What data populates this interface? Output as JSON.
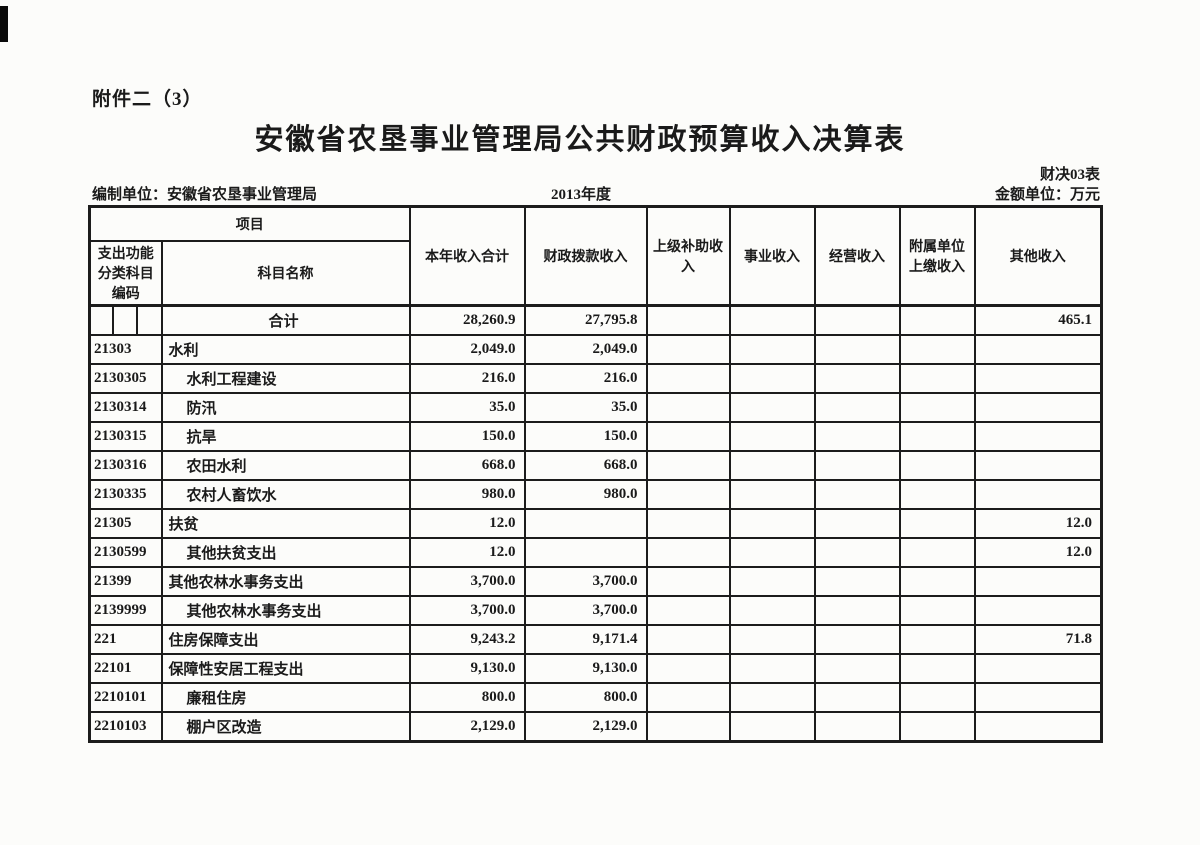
{
  "page": {
    "attachment_label": "附件二（3）",
    "title": "安徽省农垦事业管理局公共财政预算收入决算表",
    "form_code": "财决03表",
    "prepared_by": "编制单位：安徽省农垦事业管理局",
    "year": "2013年度",
    "unit_label": "金额单位：万元"
  },
  "table": {
    "header": {
      "project": "项目",
      "code": "支出功能分类科目编码",
      "subject_name": "科目名称",
      "columns": [
        "本年收入合计",
        "财政拨款收入",
        "上级补助收入",
        "事业收入",
        "经营收入",
        "附属单位上缴收入",
        "其他收入"
      ]
    },
    "rows": [
      {
        "code": "",
        "name": "合计",
        "total_row": true,
        "indent": false,
        "values": [
          "28,260.9",
          "27,795.8",
          "",
          "",
          "",
          "",
          "465.1"
        ]
      },
      {
        "code": "21303",
        "name": "水利",
        "total_row": false,
        "indent": false,
        "values": [
          "2,049.0",
          "2,049.0",
          "",
          "",
          "",
          "",
          ""
        ]
      },
      {
        "code": "2130305",
        "name": "水利工程建设",
        "total_row": false,
        "indent": true,
        "values": [
          "216.0",
          "216.0",
          "",
          "",
          "",
          "",
          ""
        ]
      },
      {
        "code": "2130314",
        "name": "防汛",
        "total_row": false,
        "indent": true,
        "values": [
          "35.0",
          "35.0",
          "",
          "",
          "",
          "",
          ""
        ]
      },
      {
        "code": "2130315",
        "name": "抗旱",
        "total_row": false,
        "indent": true,
        "values": [
          "150.0",
          "150.0",
          "",
          "",
          "",
          "",
          ""
        ]
      },
      {
        "code": "2130316",
        "name": "农田水利",
        "total_row": false,
        "indent": true,
        "values": [
          "668.0",
          "668.0",
          "",
          "",
          "",
          "",
          ""
        ]
      },
      {
        "code": "2130335",
        "name": "农村人畜饮水",
        "total_row": false,
        "indent": true,
        "values": [
          "980.0",
          "980.0",
          "",
          "",
          "",
          "",
          ""
        ]
      },
      {
        "code": "21305",
        "name": "扶贫",
        "total_row": false,
        "indent": false,
        "values": [
          "12.0",
          "",
          "",
          "",
          "",
          "",
          "12.0"
        ]
      },
      {
        "code": "2130599",
        "name": "其他扶贫支出",
        "total_row": false,
        "indent": true,
        "values": [
          "12.0",
          "",
          "",
          "",
          "",
          "",
          "12.0"
        ]
      },
      {
        "code": "21399",
        "name": "其他农林水事务支出",
        "total_row": false,
        "indent": false,
        "values": [
          "3,700.0",
          "3,700.0",
          "",
          "",
          "",
          "",
          ""
        ]
      },
      {
        "code": "2139999",
        "name": "其他农林水事务支出",
        "total_row": false,
        "indent": true,
        "values": [
          "3,700.0",
          "3,700.0",
          "",
          "",
          "",
          "",
          ""
        ]
      },
      {
        "code": "221",
        "name": "住房保障支出",
        "total_row": false,
        "indent": false,
        "values": [
          "9,243.2",
          "9,171.4",
          "",
          "",
          "",
          "",
          "71.8"
        ]
      },
      {
        "code": "22101",
        "name": "保障性安居工程支出",
        "total_row": false,
        "indent": false,
        "values": [
          "9,130.0",
          "9,130.0",
          "",
          "",
          "",
          "",
          ""
        ]
      },
      {
        "code": "2210101",
        "name": "廉租住房",
        "total_row": false,
        "indent": true,
        "values": [
          "800.0",
          "800.0",
          "",
          "",
          "",
          "",
          ""
        ]
      },
      {
        "code": "2210103",
        "name": "棚户区改造",
        "total_row": false,
        "indent": true,
        "values": [
          "2,129.0",
          "2,129.0",
          "",
          "",
          "",
          "",
          ""
        ]
      }
    ]
  }
}
